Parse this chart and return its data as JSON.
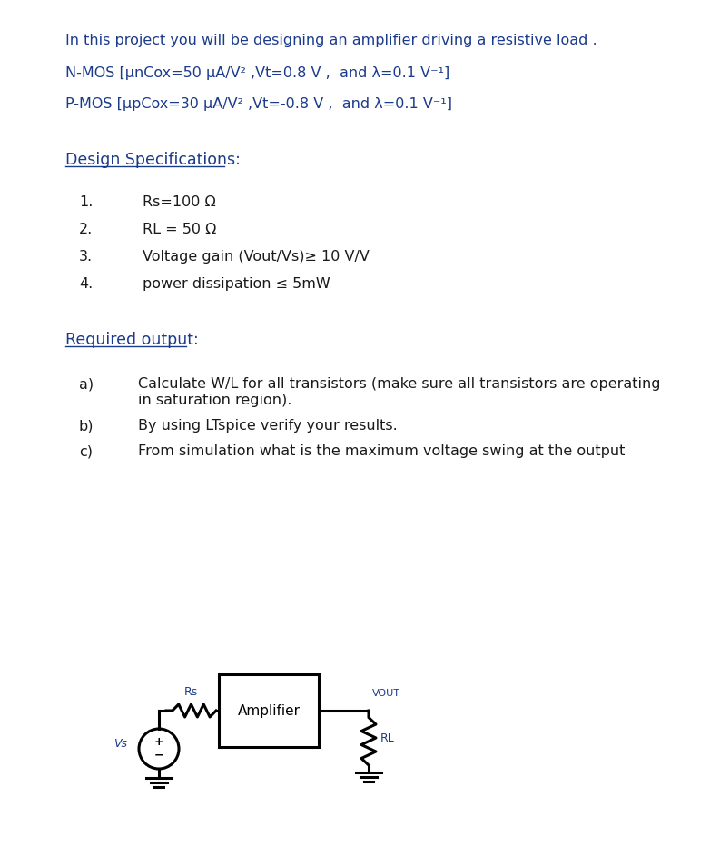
{
  "bg_color": "#ffffff",
  "text_color": "#1a3a8c",
  "body_color": "#1a1a1a",
  "fig_width": 7.93,
  "fig_height": 9.32,
  "line1": "In this project you will be designing an amplifier driving a resistive load .",
  "line2_nmos": "N-MOS [μnCox=50 μA/V² ,Vt=0.8 V ,  and λ=0.1 V⁻¹]",
  "line2_pmos": "P-MOS [μpCox=30 μA/V² ,Vt=-0.8 V ,  and λ=0.1 V⁻¹]",
  "section1": "Design Specifications:",
  "items1_nums": [
    "1.",
    "2.",
    "3.",
    "4."
  ],
  "items1": [
    "Rs=100 Ω",
    "RL = 50 Ω",
    "Voltage gain (Vout/Vs)≥ 10 V/V",
    "power dissipation ≤ 5mW"
  ],
  "section2": "Required output:",
  "items2_labels": [
    "a)",
    "b)",
    "c)"
  ],
  "items2_line1": [
    "Calculate W/L for all transistors (make sure all transistors are operating",
    "By using LTspice verify your results.",
    "From simulation what is the maximum voltage swing at the output"
  ],
  "items2_line2": [
    "in saturation region).",
    "",
    ""
  ]
}
